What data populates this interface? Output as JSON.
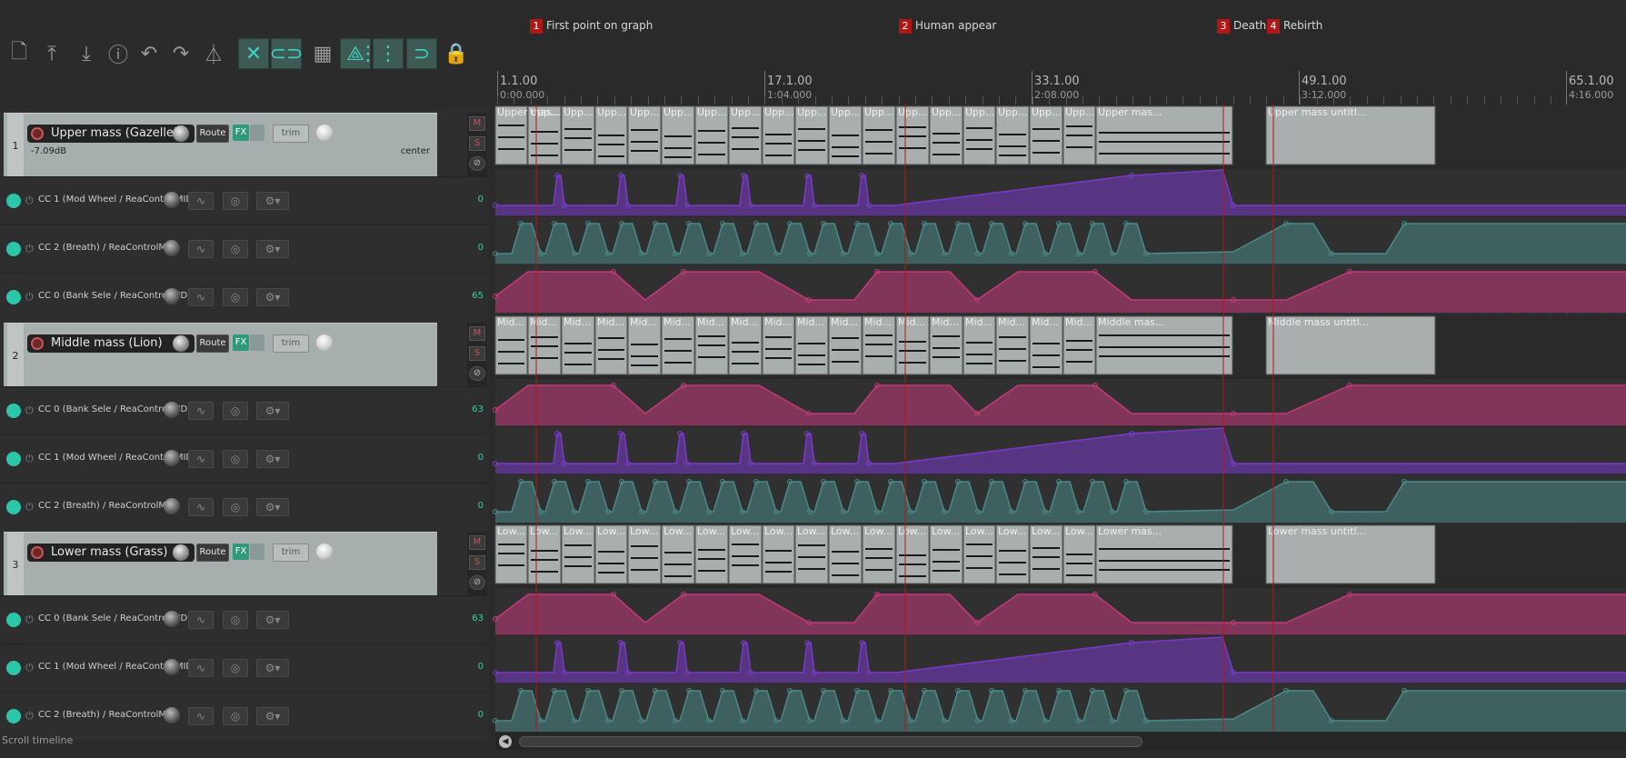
{
  "toolbar": {
    "buttons": [
      {
        "name": "new-project-icon",
        "glyph": "🗋"
      },
      {
        "name": "upload-icon",
        "glyph": "⤒"
      },
      {
        "name": "download-icon",
        "glyph": "⤓"
      },
      {
        "name": "info-icon",
        "glyph": "ⓘ"
      },
      {
        "name": "undo-icon",
        "glyph": "↶"
      },
      {
        "name": "redo-icon",
        "glyph": "↷"
      },
      {
        "name": "metronome-icon",
        "glyph": "⏃"
      },
      {
        "name": "ripple-edit-icon",
        "glyph": "✕"
      },
      {
        "name": "link-icon",
        "glyph": "⊂⊃"
      },
      {
        "name": "grid-icon",
        "glyph": "▦"
      },
      {
        "name": "envelope-link-icon",
        "glyph": "⟁"
      },
      {
        "name": "snap-grid-icon",
        "glyph": "⋮⋮⋮"
      },
      {
        "name": "snap-icon",
        "glyph": "⊃"
      },
      {
        "name": "lock-icon",
        "glyph": "🔒"
      }
    ]
  },
  "markers": [
    {
      "num": "1",
      "label": "First point on graph"
    },
    {
      "num": "2",
      "label": "Human appear"
    },
    {
      "num": "3",
      "label": "Death"
    },
    {
      "num": "4",
      "label": "Rebirth"
    }
  ],
  "ruler": [
    {
      "bar": "1.1.00",
      "time": "0:00.000"
    },
    {
      "bar": "17.1.00",
      "time": "1:04.000"
    },
    {
      "bar": "33.1.00",
      "time": "2:08.000"
    },
    {
      "bar": "49.1.00",
      "time": "3:12.000"
    },
    {
      "bar": "65.1.00",
      "time": "4:16.000"
    }
  ],
  "common": {
    "route": "Route",
    "fx": "FX",
    "trim": "trim",
    "mute": "M",
    "solo": "S",
    "phase": "⊘"
  },
  "tracks": [
    {
      "num": "1",
      "name": "Upper mass (Gazelle)",
      "vol": "-7.09dB",
      "pan": "center",
      "item_labels": [
        "Upper mas...",
        "Upp...",
        "Upp...",
        "Upp...",
        "Upp...",
        "Upp...",
        "Upp...",
        "Upp...",
        "Upp...",
        "Upp...",
        "Upp...",
        "Upp...",
        "Upp...",
        "Upp...",
        "Upp...",
        "Upp...",
        "Upp...",
        "Upp...",
        "Upper mas...",
        "Upper mass untitl..."
      ],
      "envelopes": [
        {
          "name": "CC 1 (Mod Wheel / ReaControlMIDI)",
          "value": "0"
        },
        {
          "name": "CC 2 (Breath) / ReaControlMIDI",
          "value": "0"
        },
        {
          "name": "CC 0 (Bank Sele / ReaControlMIDI",
          "value": "65"
        }
      ]
    },
    {
      "num": "2",
      "name": "Middle mass (Lion)",
      "vol": "",
      "pan": "",
      "item_labels": [
        "Mid...",
        "Mid...",
        "Mid...",
        "Mid...",
        "Mid...",
        "Mid...",
        "Mid...",
        "Mid...",
        "Mid...",
        "Mid...",
        "Mid...",
        "Mid...",
        "Mid...",
        "Mid...",
        "Mid...",
        "Mid...",
        "Mid...",
        "Mid...",
        "Middle mas...",
        "Middle mass untitl..."
      ],
      "envelopes": [
        {
          "name": "CC 0 (Bank Sele / ReaControlMIDI",
          "value": "63"
        },
        {
          "name": "CC 1 (Mod Wheel / ReaControlMIDI)",
          "value": "0"
        },
        {
          "name": "CC 2 (Breath) / ReaControlMIDI",
          "value": "0"
        }
      ]
    },
    {
      "num": "3",
      "name": "Lower mass (Grass)",
      "vol": "",
      "pan": "",
      "item_labels": [
        "Low...",
        "Low...",
        "Low...",
        "Low...",
        "Low...",
        "Low...",
        "Low...",
        "Low...",
        "Low...",
        "Low...",
        "Low...",
        "Low...",
        "Low...",
        "Low...",
        "Low...",
        "Low...",
        "Low...",
        "Low...",
        "Lower mas...",
        "Lower mass untitl..."
      ],
      "envelopes": [
        {
          "name": "CC 0 (Bank Sele / ReaControlMIDI",
          "value": "63"
        },
        {
          "name": "CC 1 (Mod Wheel / ReaControlMIDI)",
          "value": "0"
        },
        {
          "name": "CC 2 (Breath) / ReaControlMIDI",
          "value": "0"
        }
      ]
    }
  ],
  "status": "Scroll timeline",
  "colors": {
    "cc0": "#c43a7a",
    "cc1": "#7a3ac8",
    "cc2": "#4a8a88",
    "marker": "#b01818",
    "accent": "#2cc7a8"
  }
}
